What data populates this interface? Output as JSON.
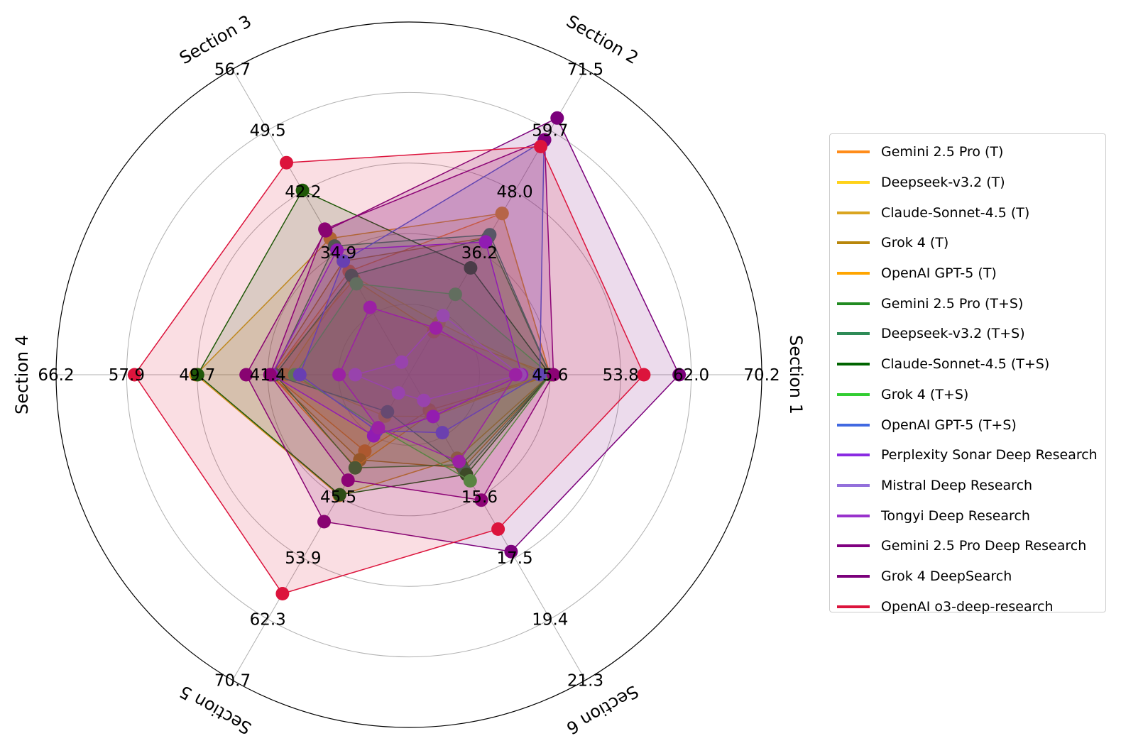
{
  "chart_data": {
    "type": "radar",
    "axes": [
      {
        "name": "Section 1",
        "ticks": [
          "45.6",
          "53.8",
          "62.0",
          "70.2"
        ],
        "min": 29.2,
        "max": 70.2
      },
      {
        "name": "Section 2",
        "ticks": [
          "36.2",
          "48.0",
          "59.7",
          "71.5"
        ],
        "min": 12.6,
        "max": 71.5
      },
      {
        "name": "Section 3",
        "ticks": [
          "34.9",
          "42.2",
          "49.5",
          "56.7"
        ],
        "min": 20.4,
        "max": 56.7
      },
      {
        "name": "Section 4",
        "ticks": [
          "41.4",
          "49.7",
          "57.9",
          "66.2"
        ],
        "min": 24.8,
        "max": 66.2
      },
      {
        "name": "Section 5",
        "ticks": [
          "45.5",
          "53.9",
          "62.3",
          "70.7"
        ],
        "min": 28.7,
        "max": 70.7
      },
      {
        "name": "Section 6",
        "ticks": [
          "15.6",
          "17.5",
          "19.4",
          "21.3"
        ],
        "min": 11.8,
        "max": 21.3
      }
    ],
    "series": [
      {
        "name": "Gemini 2.5 Pro (T)",
        "color": "#FF8C1A",
        "values": [
          45.6,
          43.7,
          32.7,
          40.8,
          39.2,
          12.9
        ]
      },
      {
        "name": "Deepseek-v3.2 (T)",
        "color": "#FFD21A",
        "values": [
          44.8,
          22.6,
          32.2,
          39.3,
          34.4,
          13.1
        ]
      },
      {
        "name": "Claude-Sonnet-4.5 (T)",
        "color": "#DAA520",
        "values": [
          45.6,
          43.7,
          36.6,
          49.8,
          45.3,
          14.4
        ]
      },
      {
        "name": "Grok 4 (T)",
        "color": "#B8860B",
        "values": [
          45.6,
          39.1,
          33.9,
          41.0,
          40.4,
          14.7
        ]
      },
      {
        "name": "OpenAI GPT-5 (T)",
        "color": "#FFA500",
        "values": [
          45.9,
          20.9,
          31.7,
          41.0,
          41.4,
          13.0
        ]
      },
      {
        "name": "Gemini 2.5 Pro (T+S)",
        "color": "#228B22",
        "values": [
          45.6,
          39.1,
          32.2,
          40.5,
          41.5,
          14.6
        ]
      },
      {
        "name": "Deepseek-v3.2 (T+S)",
        "color": "#2E8B57",
        "values": [
          45.6,
          39.6,
          35.7,
          40.8,
          33.8,
          14.8
        ]
      },
      {
        "name": "Claude-Sonnet-4.5 (T+S)",
        "color": "#006400",
        "values": [
          45.6,
          33.2,
          42.3,
          49.6,
          45.2,
          14.9
        ]
      },
      {
        "name": "Grok 4 (T+S)",
        "color": "#32CD32",
        "values": [
          45.6,
          28.1,
          31.2,
          38.2,
          36.0,
          15.1
        ]
      },
      {
        "name": "OpenAI GPT-5 (T+S)",
        "color": "#4169E1",
        "values": [
          44.4,
          57.7,
          33.9,
          37.6,
          36.4,
          13.6
        ]
      },
      {
        "name": "Perplexity Sonar Deep Research",
        "color": "#8A2BE2",
        "values": [
          42.3,
          38.2,
          35.2,
          40.9,
          37.1,
          13.1
        ]
      },
      {
        "name": "Mistral Deep Research",
        "color": "#9370DB",
        "values": [
          42.1,
          24.0,
          21.9,
          31.1,
          31.2,
          12.6
        ]
      },
      {
        "name": "Tongyi Deep Research",
        "color": "#9932CC",
        "values": [
          41.6,
          21.6,
          28.4,
          33.0,
          36.0,
          14.5
        ]
      },
      {
        "name": "Gemini 2.5 Pro Deep Research",
        "color": "#800080",
        "values": [
          46.0,
          57.9,
          37.7,
          41.1,
          43.2,
          15.7
        ]
      },
      {
        "name": "Grok 4 DeepSearch",
        "color": "#7B007B",
        "values": [
          60.6,
          62.1,
          37.5,
          43.9,
          48.9,
          17.3
        ]
      },
      {
        "name": "OpenAI o3-deep-research",
        "color": "#DC143C",
        "values": [
          56.5,
          56.6,
          45.6,
          57.0,
          58.8,
          16.6
        ]
      }
    ],
    "grid": true,
    "legend_position": "right"
  }
}
